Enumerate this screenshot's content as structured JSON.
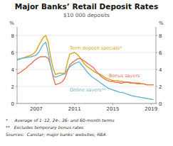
{
  "chart_data": {
    "type": "line",
    "title": "Major Banks’ Retail Deposit Rates",
    "subtitle": "$10 000 deposits",
    "ylabel": "%",
    "y2label": "%",
    "annotations": [
      "*     Average of 1–12, 24-, 36- and 60-month terms",
      "**   Excludes temporary bonus rates",
      "Sources:  Canstar; major banks’ websites; RBA"
    ],
    "xlim": [
      2005.0,
      2019.5
    ],
    "xticks": [
      2007,
      2011,
      2015,
      2019
    ],
    "ylim": [
      0,
      9
    ],
    "yticks": [
      0,
      2,
      4,
      6,
      8
    ],
    "y2lim": [
      0,
      9
    ],
    "y2ticks": [
      0,
      2,
      4,
      6,
      8
    ],
    "grid": true,
    "x": [
      2005.0,
      2005.25,
      2005.5,
      2005.75,
      2006.0,
      2006.25,
      2006.5,
      2006.75,
      2007.0,
      2007.25,
      2007.5,
      2007.75,
      2008.0,
      2008.25,
      2008.5,
      2008.75,
      2009.0,
      2009.25,
      2009.5,
      2009.75,
      2010.0,
      2010.25,
      2010.5,
      2010.75,
      2011.0,
      2011.25,
      2011.5,
      2011.75,
      2012.0,
      2012.25,
      2012.5,
      2012.75,
      2013.0,
      2013.25,
      2013.5,
      2013.75,
      2014.0,
      2014.25,
      2014.5,
      2014.75,
      2015.0,
      2015.25,
      2015.5,
      2015.75,
      2016.0,
      2016.25,
      2016.5,
      2016.75,
      2017.0,
      2017.25,
      2017.5,
      2017.75,
      2018.0,
      2018.25,
      2018.5,
      2018.75,
      2019.0,
      2019.25
    ],
    "series": [
      {
        "name": "Term deposit specials*",
        "color": "#DAA520",
        "label_x": 2010.5,
        "label_y": 6.3,
        "values": [
          5.1,
          5.2,
          5.3,
          5.4,
          5.5,
          5.6,
          5.7,
          5.9,
          6.2,
          6.8,
          7.3,
          7.8,
          8.0,
          7.2,
          5.5,
          4.2,
          3.4,
          3.5,
          3.6,
          3.5,
          3.6,
          4.8,
          5.8,
          5.9,
          6.0,
          5.8,
          5.5,
          5.1,
          4.7,
          4.4,
          4.2,
          4.0,
          3.8,
          3.6,
          3.5,
          3.4,
          3.2,
          3.0,
          2.9,
          2.8,
          2.7,
          2.7,
          2.7,
          2.6,
          2.6,
          2.5,
          2.5,
          2.4,
          2.4,
          2.4,
          2.3,
          2.3,
          2.3,
          2.3,
          2.2,
          2.2,
          2.2,
          2.2
        ]
      },
      {
        "name": "Bonus savers",
        "color": "#E8735A",
        "label_x": 2014.6,
        "label_y": 3.1,
        "values": [
          3.5,
          3.6,
          3.8,
          4.0,
          4.2,
          4.5,
          4.7,
          5.0,
          5.2,
          5.4,
          5.5,
          5.5,
          5.5,
          5.3,
          4.5,
          3.2,
          2.2,
          2.3,
          2.4,
          2.6,
          3.0,
          3.8,
          4.5,
          4.8,
          5.0,
          5.2,
          5.3,
          5.2,
          5.0,
          4.8,
          4.6,
          4.4,
          4.2,
          3.8,
          3.5,
          3.2,
          3.0,
          2.8,
          2.7,
          2.6,
          2.6,
          2.5,
          2.5,
          2.4,
          2.4,
          2.5,
          2.5,
          2.5,
          2.4,
          2.4,
          2.4,
          2.4,
          2.3,
          2.3,
          2.2,
          2.2,
          2.2,
          2.2
        ]
      },
      {
        "name": "Online savers**",
        "color": "#6BB5C9",
        "label_x": 2010.5,
        "label_y": 1.45,
        "values": [
          5.2,
          5.25,
          5.3,
          5.35,
          5.4,
          5.45,
          5.5,
          5.6,
          5.7,
          6.0,
          6.5,
          7.0,
          7.2,
          6.0,
          4.5,
          3.3,
          3.1,
          3.2,
          3.3,
          3.4,
          3.5,
          4.0,
          4.3,
          4.5,
          4.7,
          4.8,
          4.9,
          4.5,
          4.2,
          3.8,
          3.5,
          3.2,
          3.0,
          2.8,
          2.6,
          2.4,
          2.2,
          2.0,
          1.8,
          1.7,
          1.6,
          1.5,
          1.4,
          1.3,
          1.3,
          1.2,
          1.1,
          1.0,
          0.9,
          0.85,
          0.8,
          0.75,
          0.7,
          0.65,
          0.6,
          0.55,
          0.5,
          0.45
        ]
      }
    ]
  }
}
